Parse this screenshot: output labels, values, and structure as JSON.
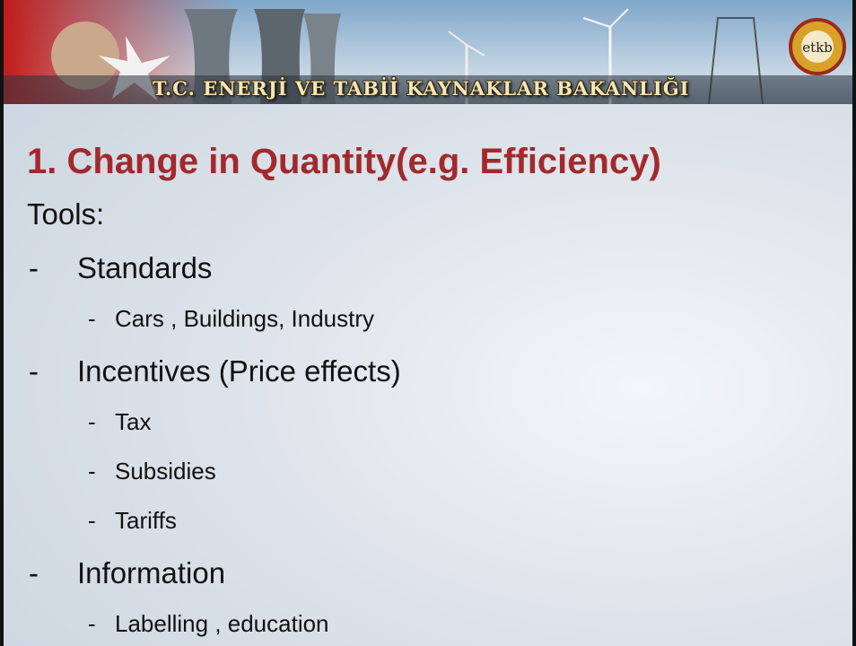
{
  "header": {
    "banner_text": "T.C. ENERJİ VE TABİİ KAYNAKLAR BAKANLIĞI",
    "logo_text": "etkb"
  },
  "slide": {
    "title": "1. Change in Quantity(e.g. Efficiency)",
    "intro": "Tools:",
    "bullet_marker": "-",
    "items": [
      {
        "text": "Standards",
        "subitems": [
          "Cars , Buildings, Industry"
        ]
      },
      {
        "text": "Incentives (Price effects)",
        "subitems": [
          "Tax",
          "Subsidies",
          "Tariffs"
        ]
      },
      {
        "text": "Information",
        "subitems": [
          "Labelling , education"
        ]
      }
    ]
  }
}
